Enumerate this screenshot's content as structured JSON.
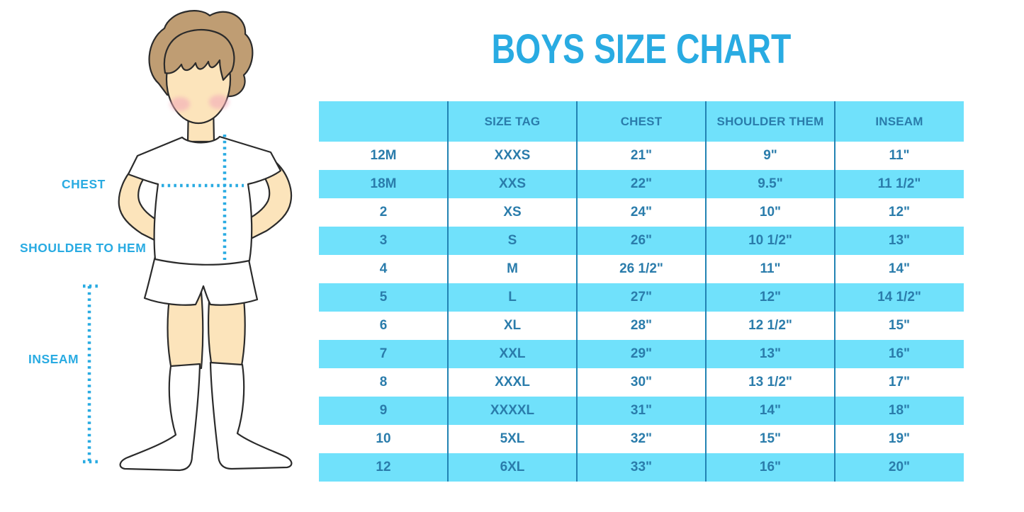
{
  "title": "BOYS SIZE CHART",
  "figure": {
    "labels": {
      "chest": "CHEST",
      "shoulder_to_hem": "SHOULDER TO HEM",
      "inseam": "INSEAM"
    }
  },
  "chart_data": {
    "type": "table",
    "title": "BOYS SIZE CHART",
    "columns": [
      "",
      "SIZE TAG",
      "CHEST",
      "SHOULDER THEM",
      "INSEAM"
    ],
    "rows": [
      [
        "12M",
        "XXXS",
        "21\"",
        "9\"",
        "11\""
      ],
      [
        "18M",
        "XXS",
        "22\"",
        "9.5\"",
        "11 1/2\""
      ],
      [
        "2",
        "XS",
        "24\"",
        "10\"",
        "12\""
      ],
      [
        "3",
        "S",
        "26\"",
        "10 1/2\"",
        "13\""
      ],
      [
        "4",
        "M",
        "26 1/2\"",
        "11\"",
        "14\""
      ],
      [
        "5",
        "L",
        "27\"",
        "12\"",
        "14 1/2\""
      ],
      [
        "6",
        "XL",
        "28\"",
        "12 1/2\"",
        "15\""
      ],
      [
        "7",
        "XXL",
        "29\"",
        "13\"",
        "16\""
      ],
      [
        "8",
        "XXXL",
        "30\"",
        "13 1/2\"",
        "17\""
      ],
      [
        "9",
        "XXXXL",
        "31\"",
        "14\"",
        "18\""
      ],
      [
        "10",
        "5XL",
        "32\"",
        "15\"",
        "19\""
      ],
      [
        "12",
        "6XL",
        "33\"",
        "16\"",
        "20\""
      ]
    ],
    "layout": {
      "striped_rows": true,
      "stripe_color": "#70e1fb",
      "header_background": "#70e1fb"
    }
  },
  "colors": {
    "accent": "#29abe2",
    "stripe": "#70e1fb",
    "table_text": "#2a7cab",
    "divider": "#2283b3",
    "skin": "#fce4bb",
    "hair": "#bf9d73",
    "blush": "#f3aab9",
    "outline": "#2b2b2b"
  }
}
